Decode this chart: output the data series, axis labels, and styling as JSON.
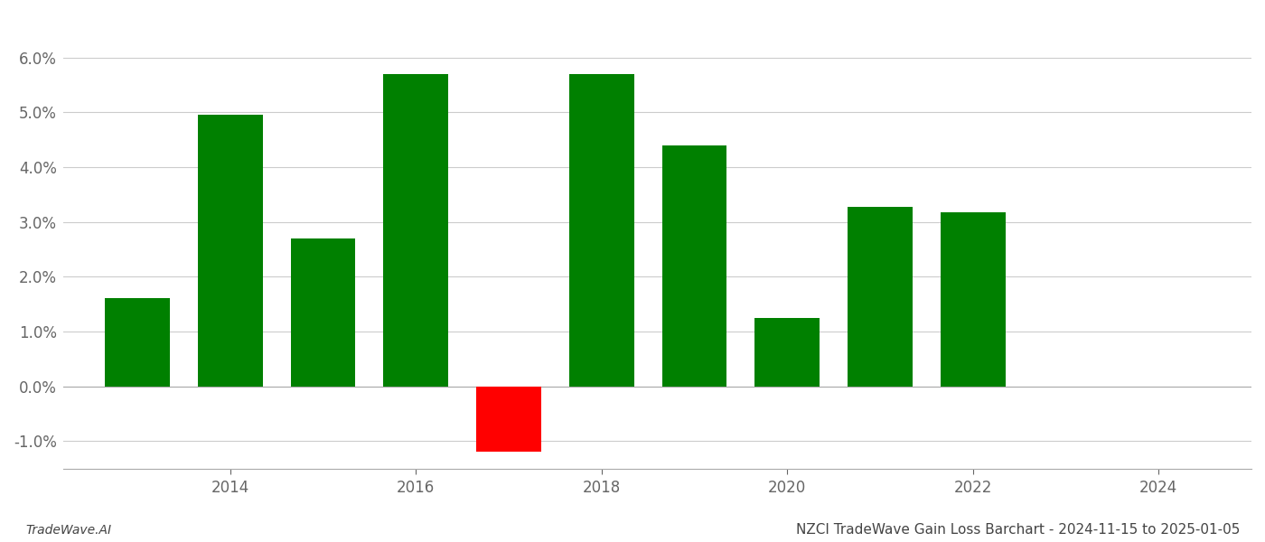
{
  "years": [
    2013,
    2014,
    2015,
    2016,
    2017,
    2018,
    2019,
    2020,
    2021,
    2022
  ],
  "values": [
    0.016,
    0.0495,
    0.027,
    0.057,
    -0.012,
    0.057,
    0.044,
    0.0125,
    0.0328,
    0.0318
  ],
  "bar_colors": [
    "#008000",
    "#008000",
    "#008000",
    "#008000",
    "#ff0000",
    "#008000",
    "#008000",
    "#008000",
    "#008000",
    "#008000"
  ],
  "title": "NZCI TradeWave Gain Loss Barchart - 2024-11-15 to 2025-01-05",
  "footer_left": "TradeWave.AI",
  "ylim": [
    -0.015,
    0.068
  ],
  "yticks": [
    -0.01,
    0.0,
    0.01,
    0.02,
    0.03,
    0.04,
    0.05,
    0.06
  ],
  "xtick_labels": [
    "2014",
    "2016",
    "2018",
    "2020",
    "2022",
    "2024"
  ],
  "xtick_positions": [
    2014,
    2016,
    2018,
    2020,
    2022,
    2024
  ],
  "xlim": [
    2012.2,
    2025.0
  ],
  "background_color": "#ffffff",
  "grid_color": "#cccccc",
  "bar_width": 0.7,
  "title_fontsize": 11,
  "footer_fontsize": 10,
  "tick_fontsize": 12
}
